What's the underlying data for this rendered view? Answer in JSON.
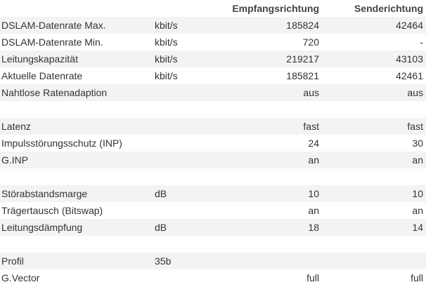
{
  "header": {
    "down": "Empfangsrichtung",
    "up": "Senderichtung"
  },
  "groups": [
    {
      "rows": [
        {
          "label": "DSLAM-Datenrate Max.",
          "unit": "kbit/s",
          "down": "185824",
          "up": "42464"
        },
        {
          "label": "DSLAM-Datenrate Min.",
          "unit": "kbit/s",
          "down": "720",
          "up": "-"
        },
        {
          "label": "Leitungskapazität",
          "unit": "kbit/s",
          "down": "219217",
          "up": "43103"
        },
        {
          "label": "Aktuelle Datenrate",
          "unit": "kbit/s",
          "down": "185821",
          "up": "42461"
        },
        {
          "label": "Nahtlose Ratenadaption",
          "down": "aus",
          "up": "aus"
        }
      ]
    },
    {
      "rows": [
        {
          "label": "Latenz",
          "down": "fast",
          "up": "fast"
        },
        {
          "label": "Impulsstörungsschutz (INP)",
          "down": "24",
          "up": "30"
        },
        {
          "label": "G.INP",
          "down": "an",
          "up": "an"
        }
      ]
    },
    {
      "rows": [
        {
          "label": "Störabstandsmarge",
          "unit": "dB",
          "down": "10",
          "up": "10"
        },
        {
          "label": "Trägertausch (Bitswap)",
          "down": "an",
          "up": "an"
        },
        {
          "label": "Leitungsdämpfung",
          "unit": "dB",
          "down": "18",
          "up": "14"
        }
      ]
    },
    {
      "rows": [
        {
          "label": "Profil",
          "unit": "35b"
        },
        {
          "label": "G.Vector",
          "down": "full",
          "up": "full"
        }
      ]
    }
  ]
}
